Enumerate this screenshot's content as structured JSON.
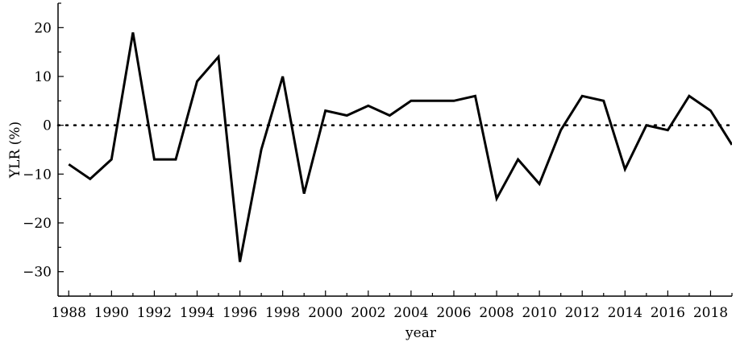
{
  "chart_data": {
    "type": "line",
    "xlabel": "year",
    "ylabel": "YLR (%)",
    "xlim": [
      1987.5,
      2019
    ],
    "ylim": [
      -35,
      25
    ],
    "x_ticks": [
      1988,
      1990,
      1992,
      1994,
      1996,
      1998,
      2000,
      2002,
      2004,
      2006,
      2008,
      2010,
      2012,
      2014,
      2016,
      2018
    ],
    "y_ticks": [
      -30,
      -20,
      -10,
      0,
      10,
      20
    ],
    "reference_line": {
      "y": 0,
      "style": "dotted"
    },
    "grid": false,
    "series": [
      {
        "x": [
          1988,
          1989,
          1990,
          1991,
          1992,
          1993,
          1994,
          1995,
          1996,
          1997,
          1998,
          1999,
          2000,
          2001,
          2002,
          2003,
          2004,
          2005,
          2006,
          2007,
          2008,
          2009,
          2010,
          2011,
          2012,
          2013,
          2014,
          2015,
          2016,
          2017,
          2018,
          2019
        ],
        "values": [
          -8,
          -11,
          -7,
          19,
          -7,
          -7,
          9,
          14,
          -28,
          -5,
          10,
          -14,
          3,
          2,
          4,
          2,
          5,
          5,
          5,
          6,
          -15,
          -7,
          -12,
          -1,
          6,
          5,
          -9,
          0,
          -1,
          6,
          3,
          -4
        ],
        "color": "#000000"
      }
    ]
  }
}
